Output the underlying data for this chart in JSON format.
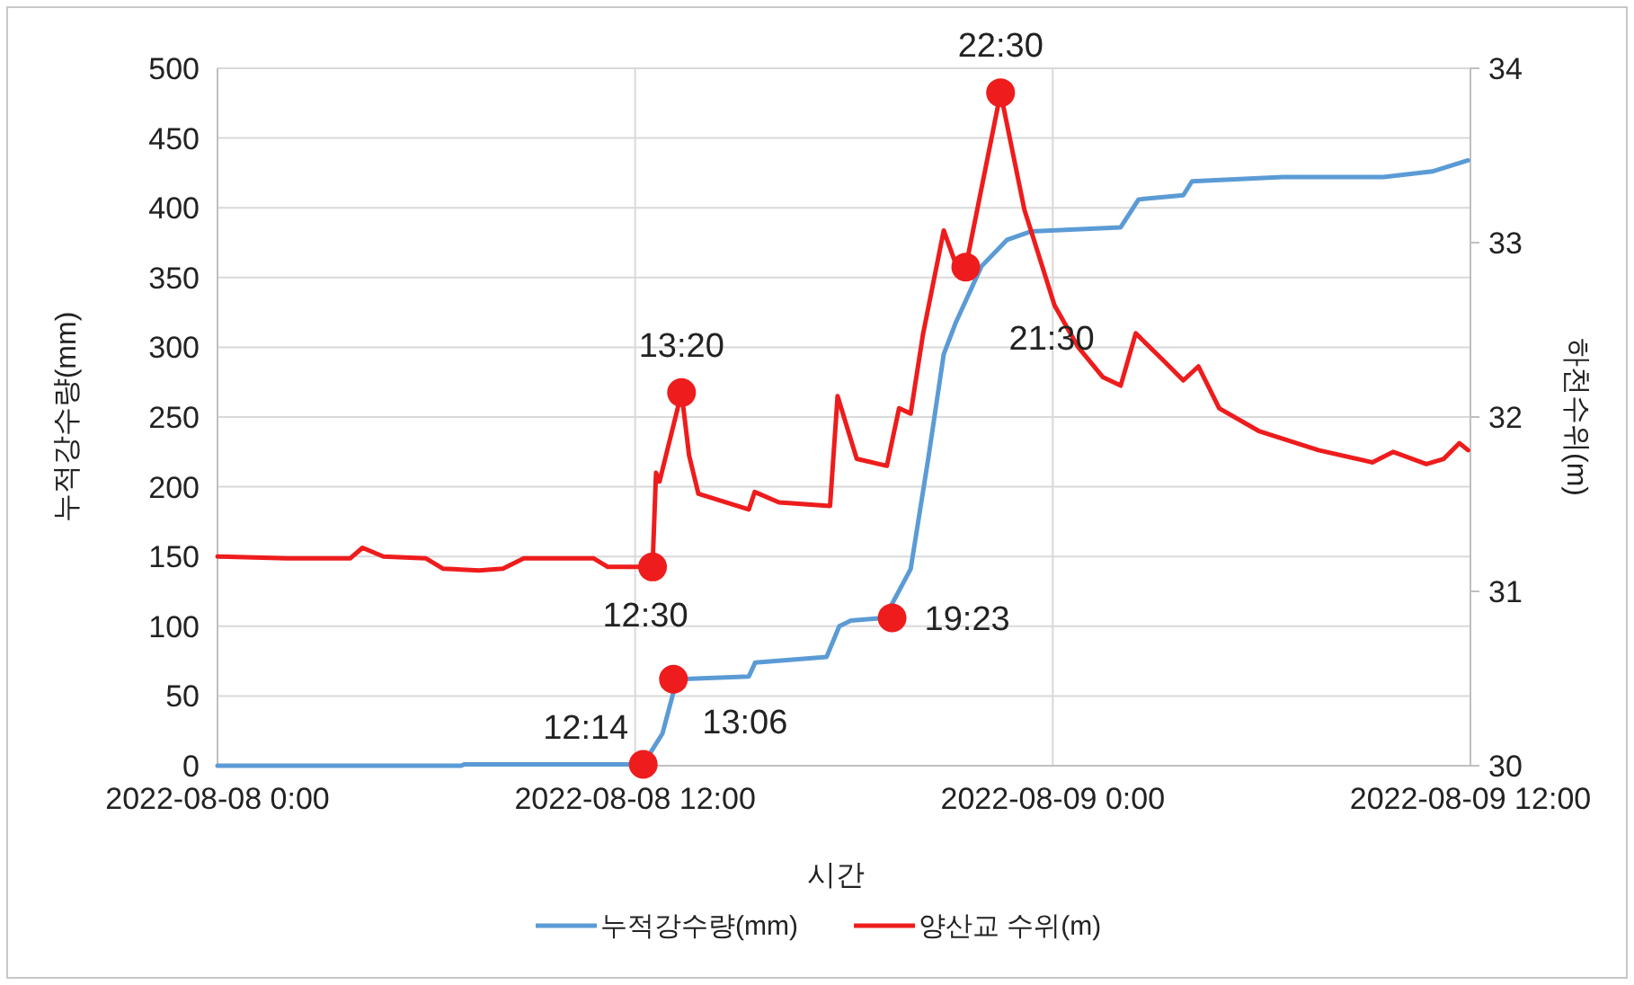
{
  "chart_data": {
    "type": "line",
    "xlabel": "시간",
    "ylabel": "누적강수량(mm)",
    "y2label": "하천수위(m)",
    "xlim": [
      "2022-08-08T00:00",
      "2022-08-09T12:00"
    ],
    "xticks": [
      {
        "value": "2022-08-08T00:00",
        "label": "2022-08-08 0:00"
      },
      {
        "value": "2022-08-08T12:00",
        "label": "2022-08-08 12:00"
      },
      {
        "value": "2022-08-09T00:00",
        "label": "2022-08-09 0:00"
      },
      {
        "value": "2022-08-09T12:00",
        "label": "2022-08-09 12:00"
      }
    ],
    "ylim": [
      0,
      500
    ],
    "yticks": [
      0,
      50,
      100,
      150,
      200,
      250,
      300,
      350,
      400,
      450,
      500
    ],
    "y2lim": [
      30,
      34
    ],
    "y2ticks": [
      30,
      31,
      32,
      33,
      34
    ],
    "grid": true,
    "legend": "bottom",
    "series": [
      {
        "name": "누적강수량(mm)",
        "color": "#5b9bd5",
        "x": [
          "2022-08-08T00:00",
          "2022-08-08T07:00",
          "2022-08-08T07:06",
          "2022-08-08T12:14",
          "2022-08-08T12:47",
          "2022-08-08T13:12",
          "2022-08-08T15:16",
          "2022-08-08T15:27",
          "2022-08-08T17:30",
          "2022-08-08T17:52",
          "2022-08-08T18:12",
          "2022-08-08T19:10",
          "2022-08-08T19:55",
          "2022-08-08T20:26",
          "2022-08-08T20:52",
          "2022-08-08T21:12",
          "2022-08-08T21:57",
          "2022-08-08T22:41",
          "2022-08-08T23:22",
          "2022-08-09T01:57",
          "2022-08-09T02:28",
          "2022-08-09T03:45",
          "2022-08-09T04:00",
          "2022-08-09T06:36",
          "2022-08-09T09:30",
          "2022-08-09T10:54",
          "2022-08-09T11:56"
        ],
        "values": [
          0,
          0,
          1,
          1,
          23,
          62,
          64,
          74,
          78,
          100,
          104,
          106,
          141,
          222,
          295,
          317,
          358,
          377,
          383,
          386,
          406,
          409,
          419,
          422,
          422,
          426,
          434
        ]
      },
      {
        "name": "양산교 수위(m)",
        "color": "#ee1c1c",
        "axis": "y2",
        "x": [
          "2022-08-08T00:00",
          "2022-08-08T02:00",
          "2022-08-08T03:49",
          "2022-08-08T04:10",
          "2022-08-08T04:46",
          "2022-08-08T05:59",
          "2022-08-08T06:29",
          "2022-08-08T07:31",
          "2022-08-08T08:12",
          "2022-08-08T08:48",
          "2022-08-08T10:48",
          "2022-08-08T11:13",
          "2022-08-08T12:30",
          "2022-08-08T12:36",
          "2022-08-08T12:42",
          "2022-08-08T13:20",
          "2022-08-08T13:33",
          "2022-08-08T13:49",
          "2022-08-08T15:16",
          "2022-08-08T15:26",
          "2022-08-08T16:08",
          "2022-08-08T17:36",
          "2022-08-08T17:49",
          "2022-08-08T18:22",
          "2022-08-08T19:14",
          "2022-08-08T19:35",
          "2022-08-08T19:55",
          "2022-08-08T20:16",
          "2022-08-08T20:52",
          "2022-08-08T21:20",
          "2022-08-08T21:30",
          "2022-08-08T22:30",
          "2022-08-08T23:11",
          "2022-08-09T00:03",
          "2022-08-09T00:44",
          "2022-08-09T01:26",
          "2022-08-09T01:57",
          "2022-08-09T02:23",
          "2022-08-09T03:09",
          "2022-08-09T03:45",
          "2022-08-09T04:11",
          "2022-08-09T04:47",
          "2022-08-09T05:55",
          "2022-08-09T07:38",
          "2022-08-09T09:11",
          "2022-08-09T09:47",
          "2022-08-09T10:44",
          "2022-08-09T11:14",
          "2022-08-09T11:41",
          "2022-08-09T11:56"
        ],
        "values": [
          31.2,
          31.19,
          31.19,
          31.25,
          31.2,
          31.19,
          31.13,
          31.12,
          31.13,
          31.19,
          31.19,
          31.14,
          31.14,
          31.68,
          31.63,
          32.14,
          31.78,
          31.56,
          31.47,
          31.57,
          31.51,
          31.49,
          32.12,
          31.76,
          31.72,
          32.05,
          32.02,
          32.47,
          33.07,
          32.81,
          32.86,
          33.86,
          33.19,
          32.64,
          32.4,
          32.23,
          32.18,
          32.48,
          32.33,
          32.21,
          32.29,
          32.05,
          31.92,
          31.81,
          31.74,
          31.8,
          31.73,
          31.76,
          31.85,
          31.81
        ]
      },
      {
        "type": "scatter",
        "color": "#ee1c1c",
        "marker": "circle",
        "x": [
          "2022-08-08T12:14",
          "2022-08-08T13:06",
          "2022-08-08T19:23"
        ],
        "values": [
          1,
          62,
          106
        ]
      },
      {
        "type": "scatter",
        "color": "#ee1c1c",
        "marker": "circle",
        "axis": "y2",
        "x": [
          "2022-08-08T12:30",
          "2022-08-08T13:20",
          "2022-08-08T21:30",
          "2022-08-08T22:30"
        ],
        "values": [
          31.14,
          32.14,
          32.86,
          33.86
        ]
      }
    ],
    "annotations": [
      {
        "text": "12:14",
        "x": "2022-08-08T12:14",
        "y": 1
      },
      {
        "text": "13:06",
        "x": "2022-08-08T13:06",
        "y": 62
      },
      {
        "text": "19:23",
        "x": "2022-08-08T19:23",
        "y": 106
      },
      {
        "text": "12:30",
        "x": "2022-08-08T12:30",
        "y": 142.5
      },
      {
        "text": "13:20",
        "x": "2022-08-08T13:20",
        "y": 267.5
      },
      {
        "text": "21:30",
        "x": "2022-08-08T21:30",
        "y": 357.5
      },
      {
        "text": "22:30",
        "x": "2022-08-08T22:30",
        "y": 482.5
      }
    ]
  }
}
